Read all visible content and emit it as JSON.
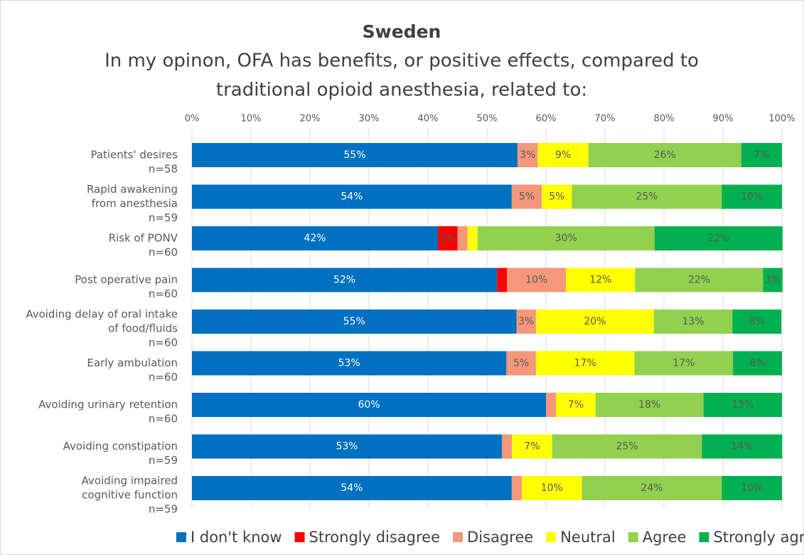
{
  "chart_data": {
    "type": "stacked_barh",
    "title": "Sweden",
    "subtitle": [
      "In my opinon, OFA has benefits, or positive effects, compared to",
      "traditional opioid anesthesia, related to:"
    ],
    "categories": [
      [
        "Patients' desires",
        "n=58"
      ],
      [
        "Rapid awakening",
        "from anesthesia",
        "n=59"
      ],
      [
        "Risk of PONV",
        "n=60"
      ],
      [
        "Post operative pain",
        "n=60"
      ],
      [
        "Avoiding delay of oral intake",
        "of food/fluids",
        "n=60"
      ],
      [
        "Early ambulation",
        "n=60"
      ],
      [
        "Avoiding urinary retention",
        "n=60"
      ],
      [
        "Avoiding constipation",
        "n=59"
      ],
      [
        "Avoiding impaired",
        "cognitive function",
        "n=59"
      ]
    ],
    "series": [
      {
        "name": "I don't know",
        "color": "#0070c0",
        "label_color": "#ffffff",
        "values": [
          55.2,
          54.2,
          41.7,
          51.7,
          55,
          53.3,
          60,
          52.54,
          54.2
        ],
        "value_labels": [
          "55%",
          "54%",
          "42%",
          "52%",
          "55%",
          "53%",
          "60%",
          "53%",
          "54%"
        ]
      },
      {
        "name": "Strongly disagree",
        "color": "#ff0000",
        "label_color": "#595959",
        "values": [
          0,
          0,
          3.3,
          1.7,
          0,
          0,
          0,
          0,
          0
        ],
        "value_labels": [
          null,
          null,
          "3%",
          null,
          null,
          null,
          null,
          null,
          null
        ]
      },
      {
        "name": "Disagree",
        "color": "#f4977a",
        "label_color": "#595959",
        "values": [
          3.4,
          5.1,
          1.7,
          10,
          3.3,
          5,
          1.7,
          1.7,
          1.7
        ],
        "value_labels": [
          "3%",
          "5%",
          null,
          "10%",
          "3%",
          "5%",
          null,
          null,
          null
        ]
      },
      {
        "name": "Neutral",
        "color": "#ffff00",
        "label_color": "#595959",
        "values": [
          8.6,
          5.1,
          1.7,
          11.7,
          20,
          16.7,
          6.7,
          6.8,
          10.2
        ],
        "value_labels": [
          "9%",
          "5%",
          null,
          "12%",
          "20%",
          "17%",
          "7%",
          "7%",
          "10%"
        ]
      },
      {
        "name": "Agree",
        "color": "#92d050",
        "label_color": "#595959",
        "values": [
          25.9,
          25.4,
          30,
          21.7,
          13.3,
          16.7,
          18.3,
          25.4,
          23.7
        ],
        "value_labels": [
          "26%",
          "25%",
          "30%",
          "22%",
          "13%",
          "17%",
          "18%",
          "25%",
          "24%"
        ]
      },
      {
        "name": "Strongly agree",
        "color": "#00b050",
        "label_color": "#595959",
        "values": [
          6.9,
          10.2,
          21.7,
          3.3,
          8.3,
          8.3,
          13.3,
          13.6,
          10.2
        ],
        "value_labels": [
          "7%",
          "10%",
          "22%",
          "3%",
          "8%",
          "8%",
          "13%",
          "14%",
          "10%"
        ]
      }
    ],
    "xlim": [
      0,
      100
    ],
    "xticks": [
      {
        "value": 0,
        "label": "0%"
      },
      {
        "value": 10,
        "label": "10%"
      },
      {
        "value": 20,
        "label": "20%"
      },
      {
        "value": 30,
        "label": "30%"
      },
      {
        "value": 40,
        "label": "40%"
      },
      {
        "value": 50,
        "label": "50%"
      },
      {
        "value": 60,
        "label": "60%"
      },
      {
        "value": 70,
        "label": "70%"
      },
      {
        "value": 80,
        "label": "80%"
      },
      {
        "value": 90,
        "label": "90%"
      },
      {
        "value": 100,
        "label": "100%"
      }
    ],
    "grid": true,
    "legend": "bottom"
  }
}
